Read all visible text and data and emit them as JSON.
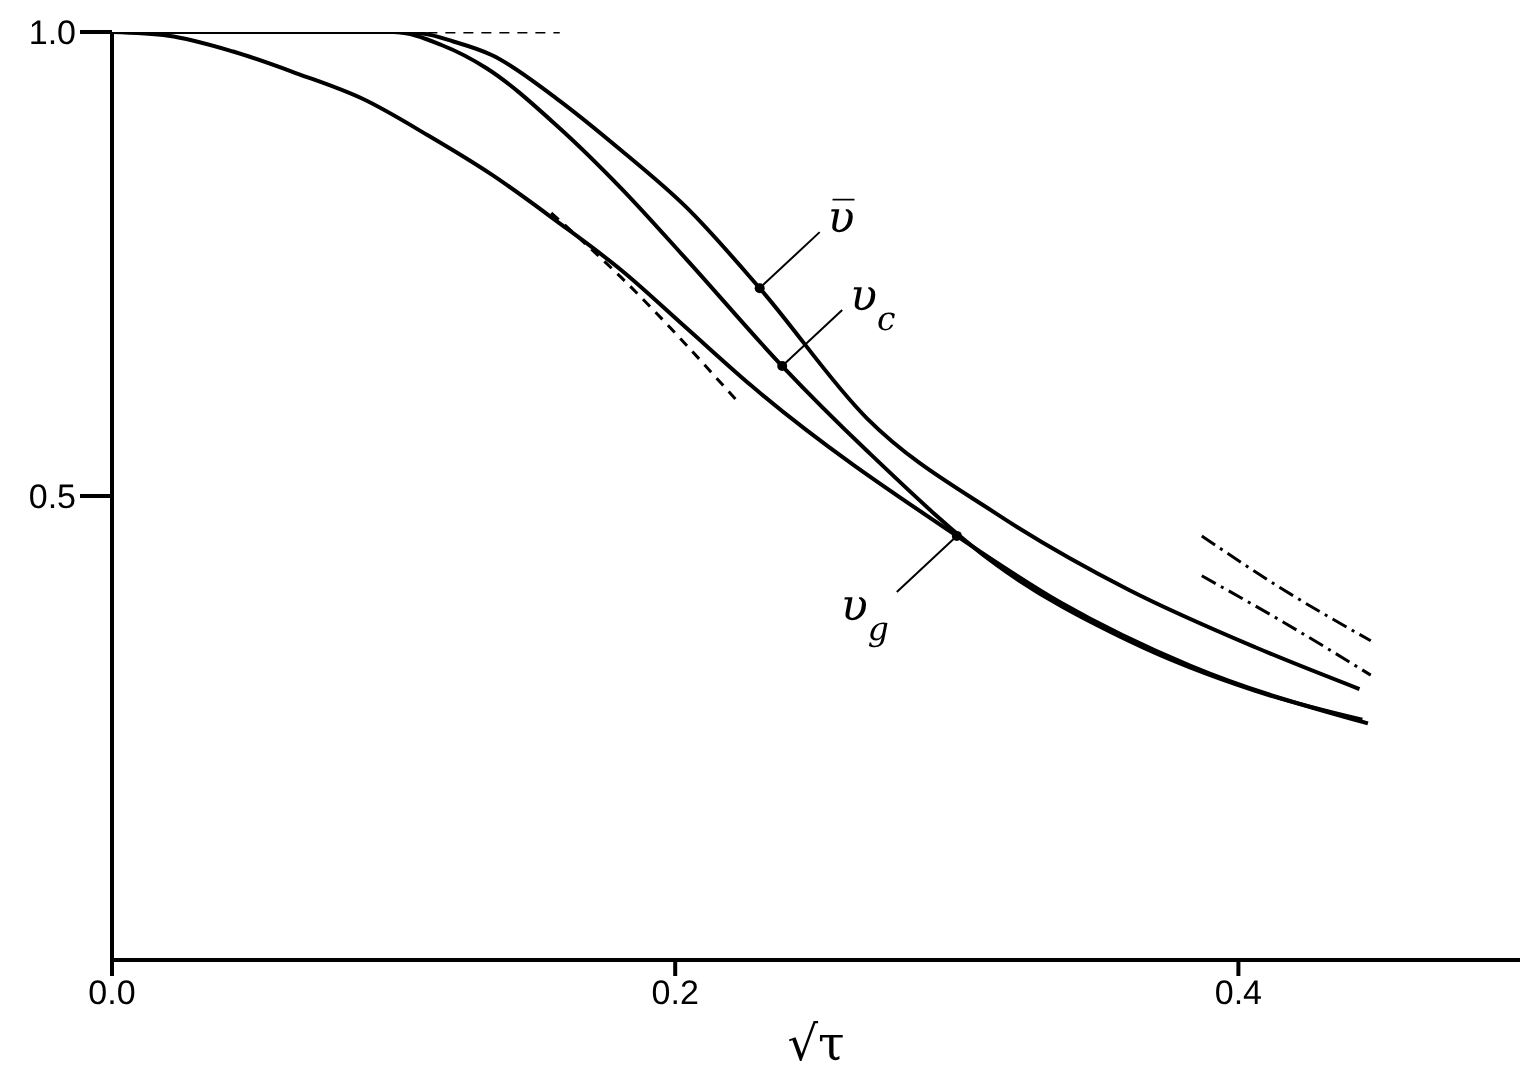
{
  "chart_data": {
    "type": "line",
    "xlabel": "√τ",
    "xlim": [
      0,
      0.5
    ],
    "ylim": [
      0,
      1
    ],
    "xticks": [
      {
        "value": 0,
        "label": "0.0"
      },
      {
        "value": 0.2,
        "label": "0.2"
      },
      {
        "value": 0.4,
        "label": "0.4"
      }
    ],
    "yticks": [
      {
        "value": 0.5,
        "label": "0.5"
      },
      {
        "value": 1,
        "label": "1.0"
      }
    ],
    "grid": false,
    "legend": false,
    "marker": "none",
    "series": [
      {
        "color": "#000000",
        "line_style": "solid",
        "x": [
          0.1,
          0.111,
          0.121,
          0.135,
          0.158,
          0.181,
          0.204,
          0.23,
          0.268,
          0.314,
          0.361,
          0.406,
          0.443
        ],
        "values": [
          1,
          0.998,
          0.99,
          0.975,
          0.928,
          0.872,
          0.811,
          0.724,
          0.584,
          0.481,
          0.399,
          0.337,
          0.292
        ]
      },
      {
        "color": "#000000",
        "line_style": "solid",
        "x": [
          0,
          0.1,
          0.117,
          0.133,
          0.158,
          0.181,
          0.204,
          0.238,
          0.268,
          0.314,
          0.361,
          0.406,
          0.444
        ],
        "values": [
          1,
          1,
          0.986,
          0.961,
          0.899,
          0.831,
          0.755,
          0.64,
          0.549,
          0.426,
          0.344,
          0.29,
          0.259
        ]
      },
      {
        "color": "#000000",
        "line_style": "solid",
        "x": [
          0,
          0.02,
          0.043,
          0.066,
          0.089,
          0.112,
          0.135,
          0.158,
          0.181,
          0.204,
          0.227,
          0.3,
          0.337,
          0.383,
          0.446
        ],
        "values": [
          1,
          0.996,
          0.979,
          0.955,
          0.928,
          0.889,
          0.846,
          0.796,
          0.743,
          0.681,
          0.619,
          0.457,
          0.385,
          0.317,
          0.255
        ]
      },
      {
        "color": "#000000",
        "line_style": "dashed",
        "x": [
          0.112,
          0.159
        ],
        "values": [
          1,
          1
        ]
      },
      {
        "color": "#000000",
        "line_style": "dashed",
        "x": [
          0.156,
          0.181,
          0.223
        ],
        "values": [
          0.805,
          0.735,
          0.599
        ]
      },
      {
        "color": "#000000",
        "line_style": "dashdot",
        "x": [
          0.387,
          0.416,
          0.447
        ],
        "values": [
          0.457,
          0.399,
          0.344
        ]
      },
      {
        "color": "#000000",
        "line_style": "dashdot",
        "x": [
          0.387,
          0.416,
          0.447
        ],
        "values": [
          0.414,
          0.364,
          0.307
        ]
      }
    ],
    "annotations": [
      {
        "text": "υ̅",
        "x": 0.23,
        "y": 0.724
      },
      {
        "text": "υ$_{c}$",
        "x": 0.238,
        "y": 0.64
      },
      {
        "text": "υ$_{g}$",
        "x": 0.3,
        "y": 0.457
      }
    ]
  }
}
